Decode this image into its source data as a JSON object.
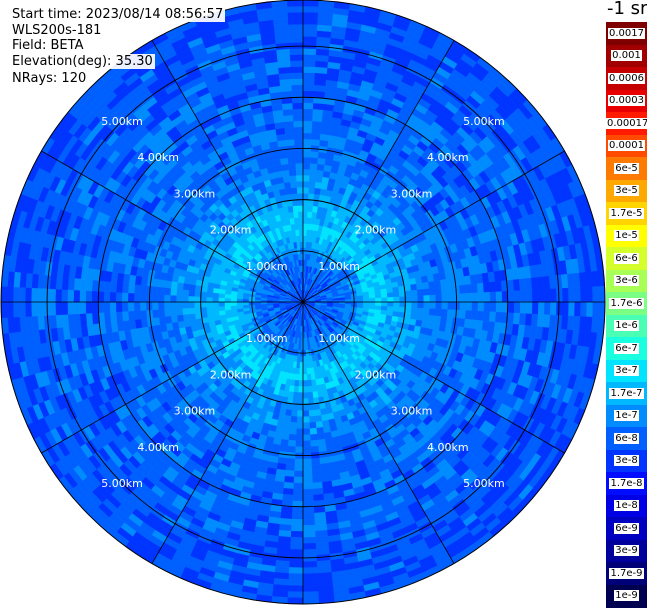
{
  "header": {
    "start_time": "Start time: 2023/08/14 08:56:57",
    "device": "WLS200s-181",
    "field": "Field: BETA",
    "elevation": "Elevation(deg): 35.30",
    "nrays": "NRays: 120"
  },
  "chart_data": {
    "type": "heatmap",
    "projection": "polar-ppi",
    "unit_label": "-1 sr",
    "nrays": 120,
    "elevation_deg": 35.3,
    "rlim_km": [
      0,
      5.9
    ],
    "range_rings_km": [
      1.0,
      2.0,
      3.0,
      4.0,
      5.0
    ],
    "ring_labels": [
      "1.00km",
      "2.00km",
      "3.00km",
      "4.00km",
      "5.00km"
    ],
    "spokes_deg": [
      0,
      30,
      60,
      90,
      120,
      150,
      180,
      210,
      240,
      270,
      300,
      330
    ],
    "colorbar_ticks": [
      "0.0017",
      "0.001",
      "0.0006",
      "0.0003",
      "0.00017",
      "0.0001",
      "6e-5",
      "3e-5",
      "1.7e-5",
      "1e-5",
      "6e-6",
      "3e-6",
      "1.7e-6",
      "1e-6",
      "6e-7",
      "3e-7",
      "1.7e-7",
      "1e-7",
      "6e-8",
      "3e-8",
      "1.7e-8",
      "1e-8",
      "6e-9",
      "3e-9",
      "1.7e-9",
      "1e-9"
    ],
    "colorbar_colors": [
      "#7f0000",
      "#a00000",
      "#c40000",
      "#e80000",
      "#ff1a00",
      "#ff4a00",
      "#ff7a00",
      "#ffa800",
      "#ffd400",
      "#ffff00",
      "#d4ff2a",
      "#a8ff56",
      "#7aff84",
      "#4affb4",
      "#1affe0",
      "#00e4ff",
      "#00b8ff",
      "#008cff",
      "#0060ff",
      "#0034ff",
      "#000cff",
      "#0000e4",
      "#0000c0",
      "#00009c",
      "#000078",
      "#000050"
    ],
    "profile": [
      {
        "r_km": 0.0,
        "value": "6e-8"
      },
      {
        "r_km": 0.9,
        "value": "1e-7"
      },
      {
        "r_km": 1.4,
        "value": "3e-7"
      },
      {
        "r_km": 2.0,
        "value": "1.7e-7"
      },
      {
        "r_km": 2.6,
        "value": "1e-7"
      },
      {
        "r_km": 5.9,
        "value": "6e-8"
      }
    ]
  }
}
